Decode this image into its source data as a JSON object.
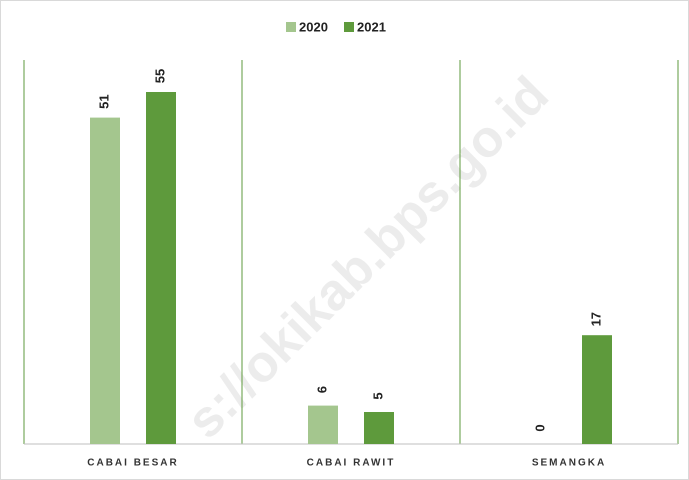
{
  "chart_data": {
    "type": "bar",
    "categories": [
      "CABAI BESAR",
      "CABAI RAWIT",
      "SEMANGKA"
    ],
    "series": [
      {
        "name": "2020",
        "color": "#a4c68e",
        "values": [
          51,
          6,
          0
        ]
      },
      {
        "name": "2021",
        "color": "#5e9a3c",
        "values": [
          55,
          5,
          17
        ]
      }
    ],
    "ylim": [
      0,
      60
    ],
    "watermark": "s://okikab.bps.go.id"
  }
}
